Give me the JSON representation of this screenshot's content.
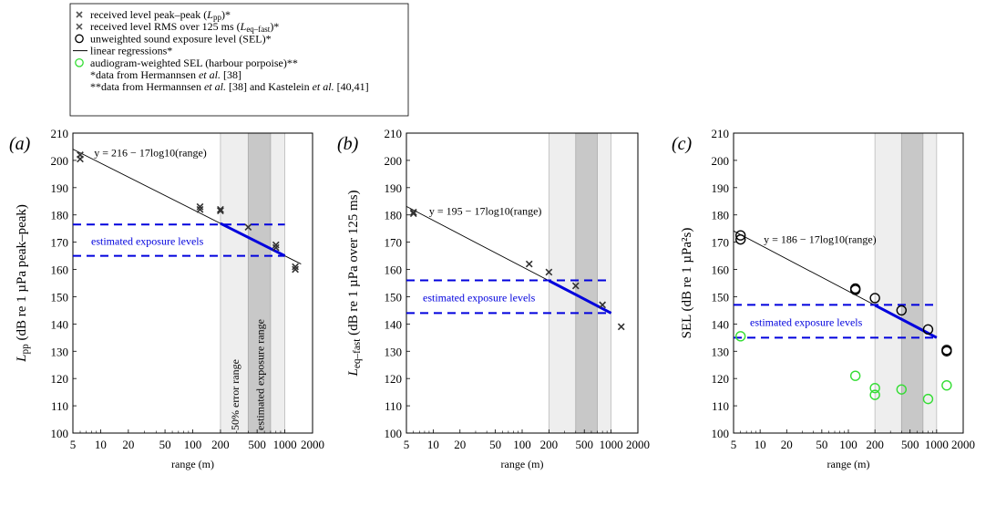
{
  "legend": {
    "items": [
      {
        "marker": "x-gray",
        "label": "received level peak–peak (L_pp)*"
      },
      {
        "marker": "x-gray",
        "label": "received level RMS over 125 ms (L_eq–fast)*"
      },
      {
        "marker": "circle-black",
        "label": "unweighted sound exposure level (SEL)*"
      },
      {
        "marker": "line",
        "label": "linear regressions*"
      },
      {
        "marker": "circle-green",
        "label": "audiogram-weighted SEL (harbour porpoise)**"
      }
    ],
    "notes": [
      "*data from Hermannsen et al. [38]",
      "**data from Hermannsen et al. [38] and Kastelein et al. [40,41]"
    ]
  },
  "xlabel": "range (m)",
  "x_ticks": [
    5,
    10,
    20,
    50,
    100,
    200,
    500,
    1000,
    2000
  ],
  "y_ticks": [
    100,
    110,
    120,
    130,
    140,
    150,
    160,
    170,
    180,
    190,
    200,
    210
  ],
  "colors": {
    "regression": "#000000",
    "exposure": "#0000dd",
    "cross": "#333333",
    "circle": "#000000",
    "green": "#33dd33",
    "band_light": "#eeeeee",
    "band_dark": "#c8c8c8"
  },
  "chart_data": [
    {
      "type": "scatter",
      "panel": "(a)",
      "ylabel": "L_pp (dB re 1 µPa peak–peak)",
      "xscale": "log",
      "xlim": [
        5,
        2000
      ],
      "ylim": [
        100,
        210
      ],
      "equation": "y = 216 − 17log10(range)",
      "regression": {
        "intercept": 216,
        "slope": -17,
        "x_range": [
          5,
          1500
        ]
      },
      "exposure": {
        "x_range": [
          200,
          1000
        ],
        "levels": [
          176.5,
          165
        ],
        "label": "estimated exposure levels"
      },
      "bands": {
        "light": [
          200,
          1000
        ],
        "dark": [
          400,
          700
        ]
      },
      "band_labels": [
        "50% error range",
        "estimated exposure range"
      ],
      "series": [
        {
          "marker": "x",
          "points": [
            [
              6,
              202
            ],
            [
              6,
              200.5
            ],
            [
              120,
              183
            ],
            [
              120,
              182
            ],
            [
              200,
              182
            ],
            [
              200,
              181.5
            ],
            [
              400,
              175.5
            ],
            [
              800,
              169
            ],
            [
              800,
              168
            ],
            [
              1300,
              161
            ],
            [
              1300,
              160
            ]
          ]
        }
      ]
    },
    {
      "type": "scatter",
      "panel": "(b)",
      "ylabel": "L_eq–fast (dB re 1 µPa over 125 ms)",
      "xscale": "log",
      "xlim": [
        5,
        2000
      ],
      "ylim": [
        100,
        210
      ],
      "equation": "y = 195 − 17log10(range)",
      "regression": {
        "intercept": 195,
        "slope": -17,
        "x_range": [
          5,
          1000
        ]
      },
      "exposure": {
        "x_range": [
          200,
          1000
        ],
        "levels": [
          156,
          144
        ],
        "label": "estimated exposure levels"
      },
      "bands": {
        "light": [
          200,
          1000
        ],
        "dark": [
          400,
          700
        ]
      },
      "series": [
        {
          "marker": "x",
          "points": [
            [
              6,
              181
            ],
            [
              6,
              180.5
            ],
            [
              120,
              162
            ],
            [
              200,
              159
            ],
            [
              400,
              154
            ],
            [
              800,
              147
            ],
            [
              1300,
              139
            ]
          ]
        }
      ]
    },
    {
      "type": "scatter",
      "panel": "(c)",
      "ylabel": "SEL (dB re 1 µPa²s)",
      "xscale": "log",
      "xlim": [
        5,
        2000
      ],
      "ylim": [
        100,
        210
      ],
      "equation": "y = 186 − 17log10(range)",
      "regression": {
        "intercept": 186,
        "slope": -17,
        "x_range": [
          5,
          1000
        ]
      },
      "exposure": {
        "x_range": [
          200,
          1000
        ],
        "levels": [
          147,
          135
        ],
        "label": "estimated exposure levels"
      },
      "bands": {
        "light": [
          200,
          1000
        ],
        "dark": [
          400,
          700
        ]
      },
      "series": [
        {
          "name": "unweighted SEL",
          "marker": "circle",
          "points": [
            [
              6,
              172.5
            ],
            [
              6,
              171
            ],
            [
              120,
              153
            ],
            [
              120,
              152.5
            ],
            [
              200,
              149.5
            ],
            [
              400,
              145
            ],
            [
              800,
              138
            ],
            [
              1300,
              130.5
            ],
            [
              1300,
              130
            ]
          ]
        },
        {
          "name": "audiogram-weighted SEL",
          "marker": "circle-green",
          "points": [
            [
              6,
              135.5
            ],
            [
              120,
              121
            ],
            [
              200,
              116.5
            ],
            [
              200,
              114
            ],
            [
              400,
              116
            ],
            [
              800,
              112.5
            ],
            [
              1300,
              117.5
            ]
          ]
        }
      ]
    }
  ]
}
